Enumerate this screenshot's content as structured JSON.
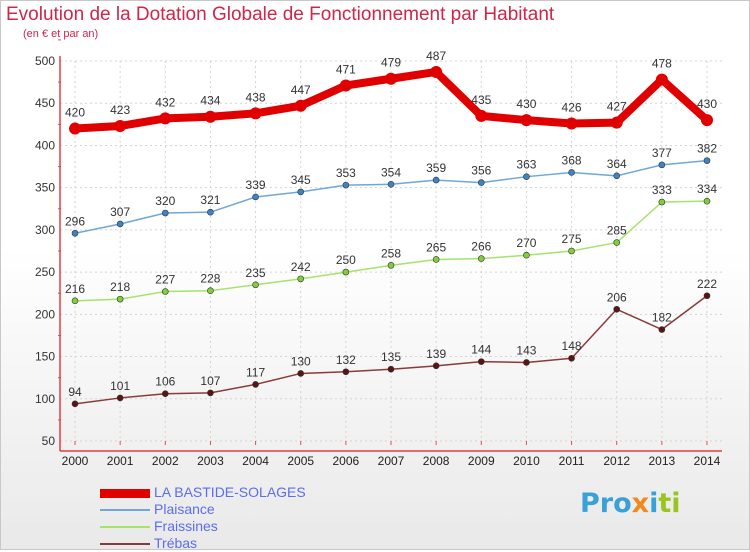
{
  "title": "Evolution de la Dotation Globale de Fonctionnement par Habitant",
  "subtitle": "(en € et par an)",
  "logo": {
    "part1": "Pro",
    "part2": "x",
    "part3": "i",
    "part4": "ti"
  },
  "chart_data": {
    "type": "line",
    "x": [
      "2000",
      "2001",
      "2002",
      "2003",
      "2004",
      "2005",
      "2006",
      "2007",
      "2008",
      "2009",
      "2010",
      "2011",
      "2012",
      "2013",
      "2014"
    ],
    "ylim": [
      50,
      500
    ],
    "yticks": [
      50,
      100,
      150,
      200,
      250,
      300,
      350,
      400,
      450,
      500
    ],
    "series": [
      {
        "name": "LA BASTIDE-SOLAGES",
        "color": "#e00000",
        "marker": "#e00000",
        "width": 8,
        "radius": 6,
        "values": [
          420,
          423,
          432,
          434,
          438,
          447,
          471,
          479,
          487,
          435,
          430,
          426,
          427,
          478,
          430
        ]
      },
      {
        "name": "Plaisance",
        "color": "#6fa8d6",
        "marker": "#3d84c6",
        "width": 1.5,
        "radius": 3,
        "values": [
          296,
          307,
          320,
          321,
          339,
          345,
          353,
          354,
          359,
          356,
          363,
          368,
          364,
          377,
          382
        ]
      },
      {
        "name": "Fraissines",
        "color": "#a6e36a",
        "marker": "#7fcf3a",
        "width": 1.5,
        "radius": 3,
        "values": [
          216,
          218,
          227,
          228,
          235,
          242,
          250,
          258,
          265,
          266,
          270,
          275,
          285,
          333,
          334
        ]
      },
      {
        "name": "Trébas",
        "color": "#8a3a3a",
        "marker": "#5a1414",
        "width": 1.5,
        "radius": 3,
        "values": [
          94,
          101,
          106,
          107,
          117,
          130,
          132,
          135,
          139,
          144,
          143,
          148,
          206,
          182,
          222
        ]
      }
    ]
  }
}
